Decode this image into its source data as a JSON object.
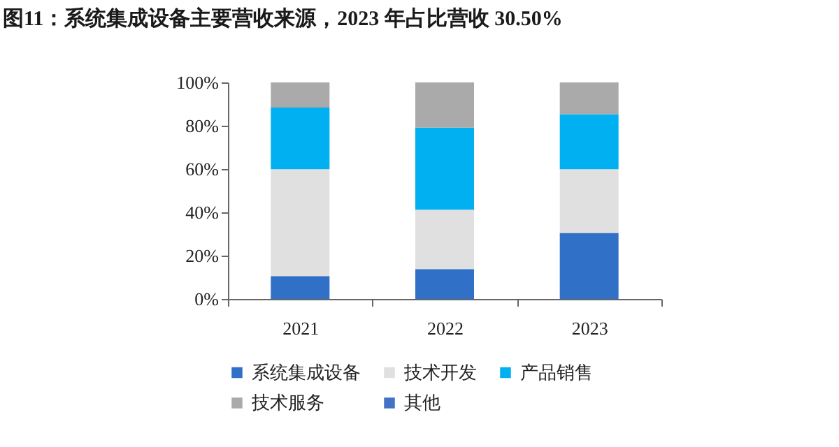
{
  "chart_data": {
    "type": "bar",
    "title": "图11：系统集成设备主要营收来源，2023 年占比营收 30.50%",
    "categories": [
      "2021",
      "2022",
      "2023"
    ],
    "stacked": true,
    "ylim": [
      0,
      100
    ],
    "yticks": [
      {
        "value": 0,
        "label": "0%"
      },
      {
        "value": 20,
        "label": "20%"
      },
      {
        "value": 40,
        "label": "40%"
      },
      {
        "value": 60,
        "label": "60%"
      },
      {
        "value": 80,
        "label": "80%"
      },
      {
        "value": 100,
        "label": "100%"
      }
    ],
    "grid": false,
    "legend": "bottom",
    "series": [
      {
        "name": "系统集成设备",
        "color": "#3070c6",
        "values": [
          10.6,
          13.8,
          30.5
        ]
      },
      {
        "name": "技术开发",
        "color": "#e0e0e0",
        "values": [
          49.3,
          27.4,
          29.4
        ]
      },
      {
        "name": "产品销售",
        "color": "#00b0f0",
        "values": [
          28.5,
          37.9,
          25.4
        ]
      },
      {
        "name": "技术服务",
        "color": "#aaaaaa",
        "values": [
          11.6,
          20.9,
          14.7
        ]
      },
      {
        "name": "其他",
        "color": "#4472c4",
        "values": [
          0,
          0,
          0
        ]
      }
    ]
  }
}
